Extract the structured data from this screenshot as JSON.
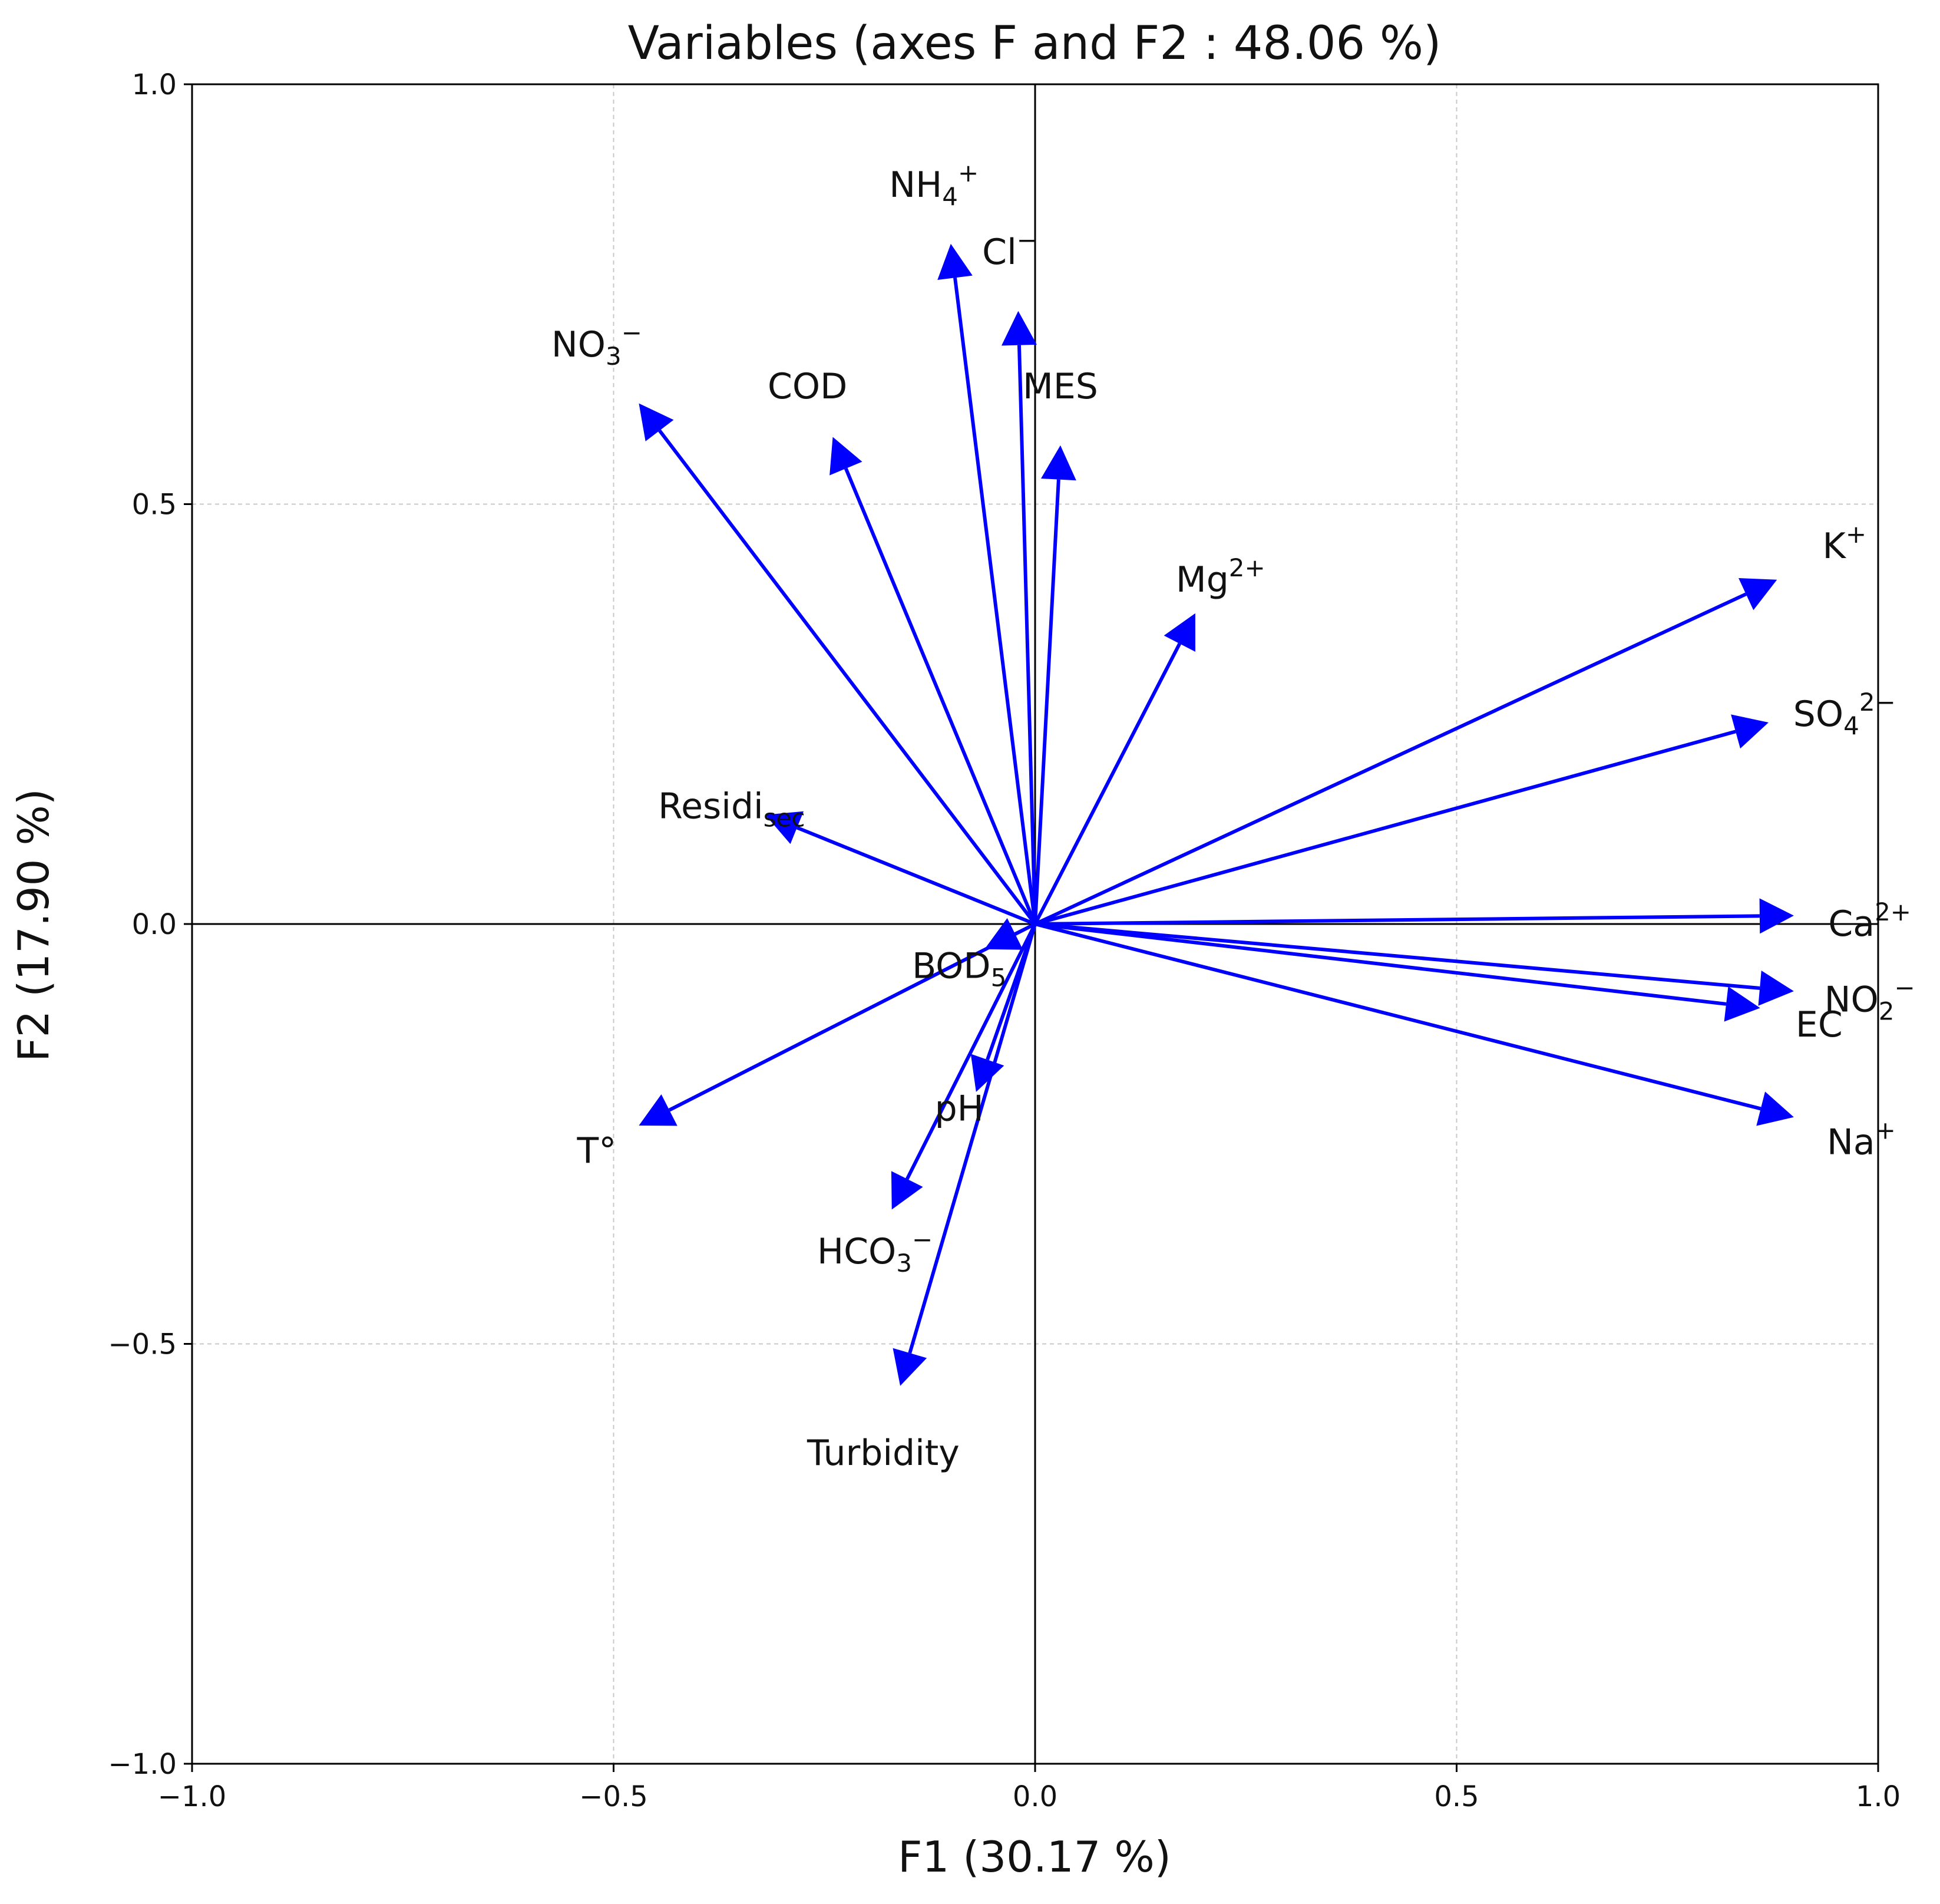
{
  "chart_data": {
    "type": "scatter",
    "subtype": "pca-correlation-circle-vectors",
    "title": "Variables (axes F and F2 : 48.06 %)",
    "xlabel": "F1 (30.17 %)",
    "ylabel": "F2 (17.90 %)",
    "xlim": [
      -1.0,
      1.0
    ],
    "ylim": [
      -1.0,
      1.0
    ],
    "xticks": [
      -1.0,
      -0.5,
      0.0,
      0.5,
      1.0
    ],
    "yticks": [
      -1.0,
      -0.5,
      0.0,
      0.5,
      1.0
    ],
    "xtick_labels": [
      "−1.0",
      "−0.5",
      "0.0",
      "0.5",
      "1.0"
    ],
    "ytick_labels": [
      "−1.0",
      "−0.5",
      "0.0",
      "0.5",
      "1.0"
    ],
    "grid": true,
    "arrow_color": "#0000ff",
    "variables": [
      {
        "id": "nh4",
        "name": "NH4+",
        "label": [
          {
            "t": "NH"
          },
          {
            "t": "4",
            "s": "sub"
          },
          {
            "t": "+",
            "s": "sup"
          }
        ],
        "x": -0.1,
        "y": 0.81,
        "lx": -0.12,
        "ly": 0.88
      },
      {
        "id": "cl",
        "name": "Cl−",
        "label": [
          {
            "t": "Cl"
          },
          {
            "t": "−",
            "s": "sup"
          }
        ],
        "x": -0.02,
        "y": 0.73,
        "lx": -0.03,
        "ly": 0.8
      },
      {
        "id": "no3",
        "name": "NO3−",
        "label": [
          {
            "t": "NO"
          },
          {
            "t": "3",
            "s": "sub"
          },
          {
            "t": "−",
            "s": "sup"
          }
        ],
        "x": -0.47,
        "y": 0.62,
        "lx": -0.52,
        "ly": 0.69
      },
      {
        "id": "cod",
        "name": "COD",
        "label": [
          {
            "t": "COD"
          }
        ],
        "x": -0.24,
        "y": 0.58,
        "lx": -0.27,
        "ly": 0.64
      },
      {
        "id": "mes",
        "name": "MES",
        "label": [
          {
            "t": "MES"
          }
        ],
        "x": 0.03,
        "y": 0.57,
        "lx": 0.03,
        "ly": 0.64
      },
      {
        "id": "mg",
        "name": "Mg2+",
        "label": [
          {
            "t": "Mg"
          },
          {
            "t": "2+",
            "s": "sup"
          }
        ],
        "x": 0.19,
        "y": 0.37,
        "lx": 0.22,
        "ly": 0.41
      },
      {
        "id": "k",
        "name": "K+",
        "label": [
          {
            "t": "K"
          },
          {
            "t": "+",
            "s": "sup"
          }
        ],
        "x": 0.88,
        "y": 0.41,
        "lx": 0.96,
        "ly": 0.45
      },
      {
        "id": "so4",
        "name": "SO42−",
        "label": [
          {
            "t": "SO"
          },
          {
            "t": "4",
            "s": "sub"
          },
          {
            "t": "2−",
            "s": "sup"
          }
        ],
        "x": 0.87,
        "y": 0.24,
        "lx": 0.96,
        "ly": 0.25
      },
      {
        "id": "residi",
        "name": "Residisec",
        "label": [
          {
            "t": "Residi"
          },
          {
            "t": "sec",
            "s": "sub"
          }
        ],
        "x": -0.32,
        "y": 0.13,
        "lx": -0.36,
        "ly": 0.14
      },
      {
        "id": "ca",
        "name": "Ca2+",
        "label": [
          {
            "t": "Ca"
          },
          {
            "t": "2+",
            "s": "sup"
          }
        ],
        "x": 0.9,
        "y": 0.01,
        "lx": 0.99,
        "ly": 0.0
      },
      {
        "id": "no2",
        "name": "NO2−",
        "label": [
          {
            "t": "NO"
          },
          {
            "t": "2",
            "s": "sub"
          },
          {
            "t": "−",
            "s": "sup"
          }
        ],
        "x": 0.9,
        "y": -0.08,
        "lx": 0.99,
        "ly": -0.09
      },
      {
        "id": "ec",
        "name": "EC",
        "label": [
          {
            "t": "EC"
          }
        ],
        "x": 0.86,
        "y": -0.1,
        "lx": 0.93,
        "ly": -0.12
      },
      {
        "id": "na",
        "name": "Na+",
        "label": [
          {
            "t": "Na"
          },
          {
            "t": "+",
            "s": "sup"
          }
        ],
        "x": 0.9,
        "y": -0.23,
        "lx": 0.98,
        "ly": -0.26
      },
      {
        "id": "bod5",
        "name": "BOD5",
        "label": [
          {
            "t": "BOD"
          },
          {
            "t": "5",
            "s": "sub"
          }
        ],
        "x": -0.06,
        "y": -0.03,
        "lx": -0.09,
        "ly": -0.05
      },
      {
        "id": "ph",
        "name": "pH",
        "label": [
          {
            "t": "pH"
          }
        ],
        "x": -0.07,
        "y": -0.2,
        "lx": -0.09,
        "ly": -0.22
      },
      {
        "id": "t",
        "name": "T°",
        "label": [
          {
            "t": "T°"
          }
        ],
        "x": -0.47,
        "y": -0.24,
        "lx": -0.52,
        "ly": -0.27
      },
      {
        "id": "hco3",
        "name": "HCO3−",
        "label": [
          {
            "t": "HCO"
          },
          {
            "t": "3",
            "s": "sub"
          },
          {
            "t": "−",
            "s": "sup"
          }
        ],
        "x": -0.17,
        "y": -0.34,
        "lx": -0.19,
        "ly": -0.39
      },
      {
        "id": "turbidity",
        "name": "Turbidity",
        "label": [
          {
            "t": "Turbidity"
          }
        ],
        "x": -0.16,
        "y": -0.55,
        "lx": -0.18,
        "ly": -0.63
      }
    ]
  }
}
